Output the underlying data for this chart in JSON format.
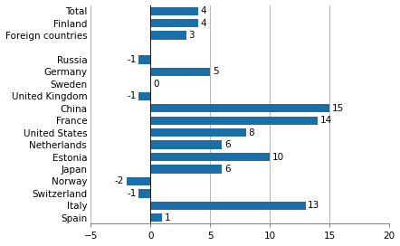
{
  "categories": [
    "Total",
    "Finland",
    "Foreign countries",
    "",
    "Russia",
    "Germany",
    "Sweden",
    "United Kingdom",
    "China",
    "France",
    "United States",
    "Netherlands",
    "Estonia",
    "Japan",
    "Norway",
    "Switzerland",
    "Italy",
    "Spain"
  ],
  "values": [
    4,
    4,
    3,
    null,
    -1,
    5,
    0,
    -1,
    15,
    14,
    8,
    6,
    10,
    6,
    -2,
    -1,
    13,
    1
  ],
  "bar_color": "#1b6fa8",
  "xlim": [
    -5,
    20
  ],
  "xticks": [
    -5,
    0,
    5,
    10,
    15,
    20
  ],
  "grid_color": "#aaaaaa",
  "label_fontsize": 7.5,
  "value_fontsize": 7.5,
  "bar_height": 0.7,
  "figsize": [
    4.42,
    2.72
  ],
  "dpi": 100
}
